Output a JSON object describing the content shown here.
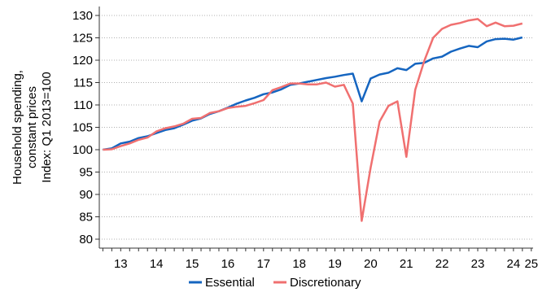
{
  "chart_data": {
    "type": "line",
    "ylabel_lines": [
      "Household spending,",
      "constant prices",
      "Index: Q1 2013=100"
    ],
    "yticks": [
      80,
      85,
      90,
      95,
      100,
      105,
      110,
      115,
      120,
      125,
      130
    ],
    "ylim": [
      78,
      132
    ],
    "xticks": [
      "13",
      "14",
      "15",
      "16",
      "17",
      "18",
      "19",
      "20",
      "21",
      "22",
      "23",
      "24",
      "25"
    ],
    "xlim": [
      2012.9,
      2025.05
    ],
    "grid": "horizontal-dotted",
    "legend_position": "bottom-center",
    "series": [
      {
        "name": "Essential",
        "color": "#1565c0",
        "x": [
          2013.0,
          2013.25,
          2013.5,
          2013.75,
          2014.0,
          2014.25,
          2014.5,
          2014.75,
          2015.0,
          2015.25,
          2015.5,
          2015.75,
          2016.0,
          2016.25,
          2016.5,
          2016.75,
          2017.0,
          2017.25,
          2017.5,
          2017.75,
          2018.0,
          2018.25,
          2018.5,
          2018.75,
          2019.0,
          2019.25,
          2019.5,
          2019.75,
          2020.0,
          2020.25,
          2020.5,
          2020.75,
          2021.0,
          2021.25,
          2021.5,
          2021.75,
          2022.0,
          2022.25,
          2022.5,
          2022.75,
          2023.0,
          2023.25,
          2023.5,
          2023.75,
          2024.0,
          2024.25,
          2024.5,
          2024.75
        ],
        "values": [
          100.0,
          100.3,
          101.4,
          101.8,
          102.6,
          103.0,
          103.7,
          104.4,
          104.8,
          105.6,
          106.5,
          107.0,
          108.0,
          108.6,
          109.4,
          110.3,
          111.0,
          111.6,
          112.4,
          112.8,
          113.5,
          114.5,
          114.8,
          115.2,
          115.6,
          116.0,
          116.3,
          116.7,
          117.0,
          110.8,
          115.9,
          116.8,
          117.2,
          118.2,
          117.8,
          119.2,
          119.4,
          120.4,
          120.8,
          121.9,
          122.6,
          123.2,
          122.9,
          124.2,
          124.7,
          124.8,
          124.6,
          125.1
        ]
      },
      {
        "name": "Discretionary",
        "color": "#f07070",
        "x": [
          2013.0,
          2013.25,
          2013.5,
          2013.75,
          2014.0,
          2014.25,
          2014.5,
          2014.75,
          2015.0,
          2015.25,
          2015.5,
          2015.75,
          2016.0,
          2016.25,
          2016.5,
          2016.75,
          2017.0,
          2017.25,
          2017.5,
          2017.75,
          2018.0,
          2018.25,
          2018.5,
          2018.75,
          2019.0,
          2019.25,
          2019.5,
          2019.75,
          2020.0,
          2020.25,
          2020.5,
          2020.75,
          2021.0,
          2021.25,
          2021.5,
          2021.75,
          2022.0,
          2022.25,
          2022.5,
          2022.75,
          2023.0,
          2023.25,
          2023.5,
          2023.75,
          2024.0,
          2024.25,
          2024.5,
          2024.75
        ],
        "values": [
          100.0,
          100.1,
          100.8,
          101.4,
          102.2,
          102.7,
          104.1,
          104.8,
          105.2,
          105.8,
          106.9,
          107.1,
          108.2,
          108.6,
          109.3,
          109.6,
          109.8,
          110.4,
          111.1,
          113.3,
          114.0,
          114.8,
          114.8,
          114.6,
          114.6,
          115.0,
          114.1,
          114.5,
          110.3,
          84.1,
          96.0,
          106.3,
          109.8,
          110.8,
          98.4,
          113.4,
          119.8,
          125.0,
          127.0,
          127.9,
          128.3,
          128.9,
          129.2,
          127.6,
          128.4,
          127.6,
          127.7,
          128.2
        ]
      }
    ]
  }
}
